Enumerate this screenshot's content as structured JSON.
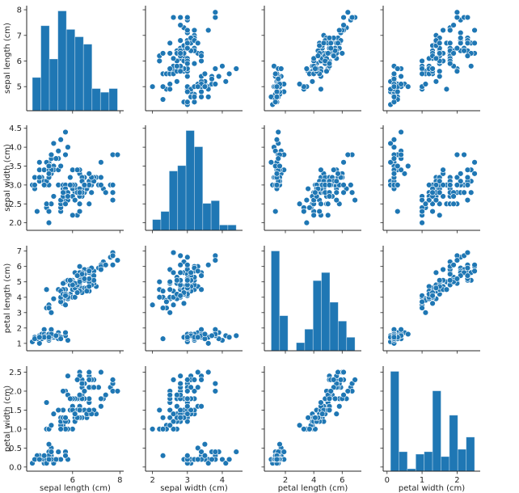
{
  "chart_data": {
    "type": "scatter",
    "title": "",
    "layout": "pairplot",
    "color": "#1f77b4",
    "diagonal": "histogram",
    "bins": 10,
    "grid": false,
    "variables": [
      {
        "label": "sepal length (cm)",
        "lim": [
          4.06,
          8.16
        ],
        "ticks": [
          5,
          6,
          7,
          8
        ],
        "tick_labels": [
          "5",
          "6",
          "7",
          "8"
        ],
        "x_ticks": [
          6,
          8
        ],
        "x_tick_labels": [
          "6",
          "8"
        ]
      },
      {
        "label": "sepal width (cm)",
        "lim": [
          1.8,
          4.58
        ],
        "ticks": [
          2.0,
          2.5,
          3.0,
          3.5,
          4.0,
          4.5
        ],
        "tick_labels": [
          "2.0",
          "2.5",
          "3.0",
          "3.5",
          "4.0",
          "4.5"
        ],
        "x_ticks": [
          2,
          3,
          4
        ],
        "x_tick_labels": [
          "2",
          "3",
          "4"
        ]
      },
      {
        "label": "petal length (cm)",
        "lim": [
          0.52,
          7.35
        ],
        "ticks": [
          1,
          2,
          3,
          4,
          5,
          6,
          7
        ],
        "tick_labels": [
          "1",
          "2",
          "3",
          "4",
          "5",
          "6",
          "7"
        ],
        "x_ticks": [
          2,
          4,
          6
        ],
        "x_tick_labels": [
          "2",
          "4",
          "6"
        ]
      },
      {
        "label": "petal width (cm)",
        "lim": [
          -0.11,
          2.66
        ],
        "ticks": [
          0.0,
          0.5,
          1.0,
          1.5,
          2.0,
          2.5
        ],
        "tick_labels": [
          "0.0",
          "0.5",
          "1.0",
          "1.5",
          "2.0",
          "2.5"
        ],
        "x_ticks": [
          0,
          1,
          2
        ],
        "x_tick_labels": [
          "0",
          "1",
          "2"
        ]
      }
    ],
    "data": [
      [
        5.1,
        3.5,
        1.4,
        0.2
      ],
      [
        4.9,
        3.0,
        1.4,
        0.2
      ],
      [
        4.7,
        3.2,
        1.3,
        0.2
      ],
      [
        4.6,
        3.1,
        1.5,
        0.2
      ],
      [
        5.0,
        3.6,
        1.4,
        0.2
      ],
      [
        5.4,
        3.9,
        1.7,
        0.4
      ],
      [
        4.6,
        3.4,
        1.4,
        0.3
      ],
      [
        5.0,
        3.4,
        1.5,
        0.2
      ],
      [
        4.4,
        2.9,
        1.4,
        0.2
      ],
      [
        4.9,
        3.1,
        1.5,
        0.1
      ],
      [
        5.4,
        3.7,
        1.5,
        0.2
      ],
      [
        4.8,
        3.4,
        1.6,
        0.2
      ],
      [
        4.8,
        3.0,
        1.4,
        0.1
      ],
      [
        4.3,
        3.0,
        1.1,
        0.1
      ],
      [
        5.8,
        4.0,
        1.2,
        0.2
      ],
      [
        5.7,
        4.4,
        1.5,
        0.4
      ],
      [
        5.4,
        3.9,
        1.3,
        0.4
      ],
      [
        5.1,
        3.5,
        1.4,
        0.3
      ],
      [
        5.7,
        3.8,
        1.7,
        0.3
      ],
      [
        5.1,
        3.8,
        1.5,
        0.3
      ],
      [
        5.4,
        3.4,
        1.7,
        0.2
      ],
      [
        5.1,
        3.7,
        1.5,
        0.4
      ],
      [
        4.6,
        3.6,
        1.0,
        0.2
      ],
      [
        5.1,
        3.3,
        1.7,
        0.5
      ],
      [
        4.8,
        3.4,
        1.9,
        0.2
      ],
      [
        5.0,
        3.0,
        1.6,
        0.2
      ],
      [
        5.0,
        3.4,
        1.6,
        0.4
      ],
      [
        5.2,
        3.5,
        1.5,
        0.2
      ],
      [
        5.2,
        3.4,
        1.4,
        0.2
      ],
      [
        4.7,
        3.2,
        1.6,
        0.2
      ],
      [
        4.8,
        3.1,
        1.6,
        0.2
      ],
      [
        5.4,
        3.4,
        1.5,
        0.4
      ],
      [
        5.2,
        4.1,
        1.5,
        0.1
      ],
      [
        5.5,
        4.2,
        1.4,
        0.2
      ],
      [
        4.9,
        3.1,
        1.5,
        0.2
      ],
      [
        5.0,
        3.2,
        1.2,
        0.2
      ],
      [
        5.5,
        3.5,
        1.3,
        0.2
      ],
      [
        4.9,
        3.6,
        1.4,
        0.1
      ],
      [
        4.4,
        3.0,
        1.3,
        0.2
      ],
      [
        5.1,
        3.4,
        1.5,
        0.2
      ],
      [
        5.0,
        3.5,
        1.3,
        0.3
      ],
      [
        4.5,
        2.3,
        1.3,
        0.3
      ],
      [
        4.4,
        3.2,
        1.3,
        0.2
      ],
      [
        5.0,
        3.5,
        1.6,
        0.6
      ],
      [
        5.1,
        3.8,
        1.9,
        0.4
      ],
      [
        4.8,
        3.0,
        1.4,
        0.3
      ],
      [
        5.1,
        3.8,
        1.6,
        0.2
      ],
      [
        4.6,
        3.2,
        1.4,
        0.2
      ],
      [
        5.3,
        3.7,
        1.5,
        0.2
      ],
      [
        5.0,
        3.3,
        1.4,
        0.2
      ],
      [
        7.0,
        3.2,
        4.7,
        1.4
      ],
      [
        6.4,
        3.2,
        4.5,
        1.5
      ],
      [
        6.9,
        3.1,
        4.9,
        1.5
      ],
      [
        5.5,
        2.3,
        4.0,
        1.3
      ],
      [
        6.5,
        2.8,
        4.6,
        1.5
      ],
      [
        5.7,
        2.8,
        4.5,
        1.3
      ],
      [
        6.3,
        3.3,
        4.7,
        1.6
      ],
      [
        4.9,
        2.4,
        3.3,
        1.0
      ],
      [
        6.6,
        2.9,
        4.6,
        1.3
      ],
      [
        5.2,
        2.7,
        3.9,
        1.4
      ],
      [
        5.0,
        2.0,
        3.5,
        1.0
      ],
      [
        5.9,
        3.0,
        4.2,
        1.5
      ],
      [
        6.0,
        2.2,
        4.0,
        1.0
      ],
      [
        6.1,
        2.9,
        4.7,
        1.4
      ],
      [
        5.6,
        2.9,
        3.6,
        1.3
      ],
      [
        6.7,
        3.1,
        4.4,
        1.4
      ],
      [
        5.6,
        3.0,
        4.5,
        1.5
      ],
      [
        5.8,
        2.7,
        4.1,
        1.0
      ],
      [
        6.2,
        2.2,
        4.5,
        1.5
      ],
      [
        5.6,
        2.5,
        3.9,
        1.1
      ],
      [
        5.9,
        3.2,
        4.8,
        1.8
      ],
      [
        6.1,
        2.8,
        4.0,
        1.3
      ],
      [
        6.3,
        2.5,
        4.9,
        1.5
      ],
      [
        6.1,
        2.8,
        4.7,
        1.2
      ],
      [
        6.4,
        2.9,
        4.3,
        1.3
      ],
      [
        6.6,
        3.0,
        4.4,
        1.4
      ],
      [
        6.8,
        2.8,
        4.8,
        1.4
      ],
      [
        6.7,
        3.0,
        5.0,
        1.7
      ],
      [
        6.0,
        2.9,
        4.5,
        1.5
      ],
      [
        5.7,
        2.6,
        3.5,
        1.0
      ],
      [
        5.5,
        2.4,
        3.8,
        1.1
      ],
      [
        5.5,
        2.4,
        3.7,
        1.0
      ],
      [
        5.8,
        2.7,
        3.9,
        1.2
      ],
      [
        6.0,
        2.7,
        5.1,
        1.6
      ],
      [
        5.4,
        3.0,
        4.5,
        1.5
      ],
      [
        6.0,
        3.4,
        4.5,
        1.6
      ],
      [
        6.7,
        3.1,
        4.7,
        1.5
      ],
      [
        6.3,
        2.3,
        4.4,
        1.3
      ],
      [
        5.6,
        3.0,
        4.1,
        1.3
      ],
      [
        5.5,
        2.5,
        4.0,
        1.3
      ],
      [
        5.5,
        2.6,
        4.4,
        1.2
      ],
      [
        6.1,
        3.0,
        4.6,
        1.4
      ],
      [
        5.8,
        2.6,
        4.0,
        1.2
      ],
      [
        5.0,
        2.3,
        3.3,
        1.0
      ],
      [
        5.6,
        2.7,
        4.2,
        1.3
      ],
      [
        5.7,
        3.0,
        4.2,
        1.2
      ],
      [
        5.7,
        2.9,
        4.2,
        1.3
      ],
      [
        6.2,
        2.9,
        4.3,
        1.3
      ],
      [
        5.1,
        2.5,
        3.0,
        1.1
      ],
      [
        5.7,
        2.8,
        4.1,
        1.3
      ],
      [
        6.3,
        3.3,
        6.0,
        2.5
      ],
      [
        5.8,
        2.7,
        5.1,
        1.9
      ],
      [
        7.1,
        3.0,
        5.9,
        2.1
      ],
      [
        6.3,
        2.9,
        5.6,
        1.8
      ],
      [
        6.5,
        3.0,
        5.8,
        2.2
      ],
      [
        7.6,
        3.0,
        6.6,
        2.1
      ],
      [
        4.9,
        2.5,
        4.5,
        1.7
      ],
      [
        7.3,
        2.9,
        6.3,
        1.8
      ],
      [
        6.7,
        2.5,
        5.8,
        1.8
      ],
      [
        7.2,
        3.6,
        6.1,
        2.5
      ],
      [
        6.5,
        3.2,
        5.1,
        2.0
      ],
      [
        6.4,
        2.7,
        5.3,
        1.9
      ],
      [
        6.8,
        3.0,
        5.5,
        2.1
      ],
      [
        5.7,
        2.5,
        5.0,
        2.0
      ],
      [
        5.8,
        2.8,
        5.1,
        2.4
      ],
      [
        6.4,
        3.2,
        5.3,
        2.3
      ],
      [
        6.5,
        3.0,
        5.5,
        1.8
      ],
      [
        7.7,
        3.8,
        6.7,
        2.2
      ],
      [
        7.7,
        2.6,
        6.9,
        2.3
      ],
      [
        6.0,
        2.2,
        5.0,
        1.5
      ],
      [
        6.9,
        3.2,
        5.7,
        2.3
      ],
      [
        5.6,
        2.8,
        4.9,
        2.0
      ],
      [
        7.7,
        2.8,
        6.7,
        2.0
      ],
      [
        6.3,
        2.7,
        4.9,
        1.8
      ],
      [
        6.7,
        3.3,
        5.7,
        2.1
      ],
      [
        7.2,
        3.2,
        6.0,
        1.8
      ],
      [
        6.2,
        2.8,
        4.8,
        1.8
      ],
      [
        6.1,
        3.0,
        4.9,
        1.8
      ],
      [
        6.4,
        2.8,
        5.6,
        2.1
      ],
      [
        7.2,
        3.0,
        5.8,
        1.6
      ],
      [
        7.4,
        2.8,
        6.1,
        1.9
      ],
      [
        7.9,
        3.8,
        6.4,
        2.0
      ],
      [
        6.4,
        2.8,
        5.6,
        2.2
      ],
      [
        6.3,
        2.8,
        5.1,
        1.5
      ],
      [
        6.1,
        2.6,
        5.6,
        1.4
      ],
      [
        7.7,
        3.0,
        6.1,
        2.3
      ],
      [
        6.3,
        3.4,
        5.6,
        2.4
      ],
      [
        6.4,
        3.1,
        5.5,
        1.8
      ],
      [
        6.0,
        3.0,
        4.8,
        1.8
      ],
      [
        6.9,
        3.1,
        5.4,
        2.1
      ],
      [
        6.7,
        3.1,
        5.6,
        2.4
      ],
      [
        6.9,
        3.1,
        5.1,
        2.3
      ],
      [
        5.8,
        2.7,
        5.1,
        1.9
      ],
      [
        6.8,
        3.2,
        5.9,
        2.3
      ],
      [
        6.7,
        3.3,
        5.7,
        2.5
      ],
      [
        6.7,
        3.0,
        5.2,
        2.3
      ],
      [
        6.3,
        2.5,
        5.0,
        1.9
      ],
      [
        6.5,
        3.0,
        5.2,
        2.0
      ],
      [
        6.2,
        3.4,
        5.4,
        2.3
      ],
      [
        5.9,
        3.0,
        5.1,
        1.8
      ]
    ]
  }
}
